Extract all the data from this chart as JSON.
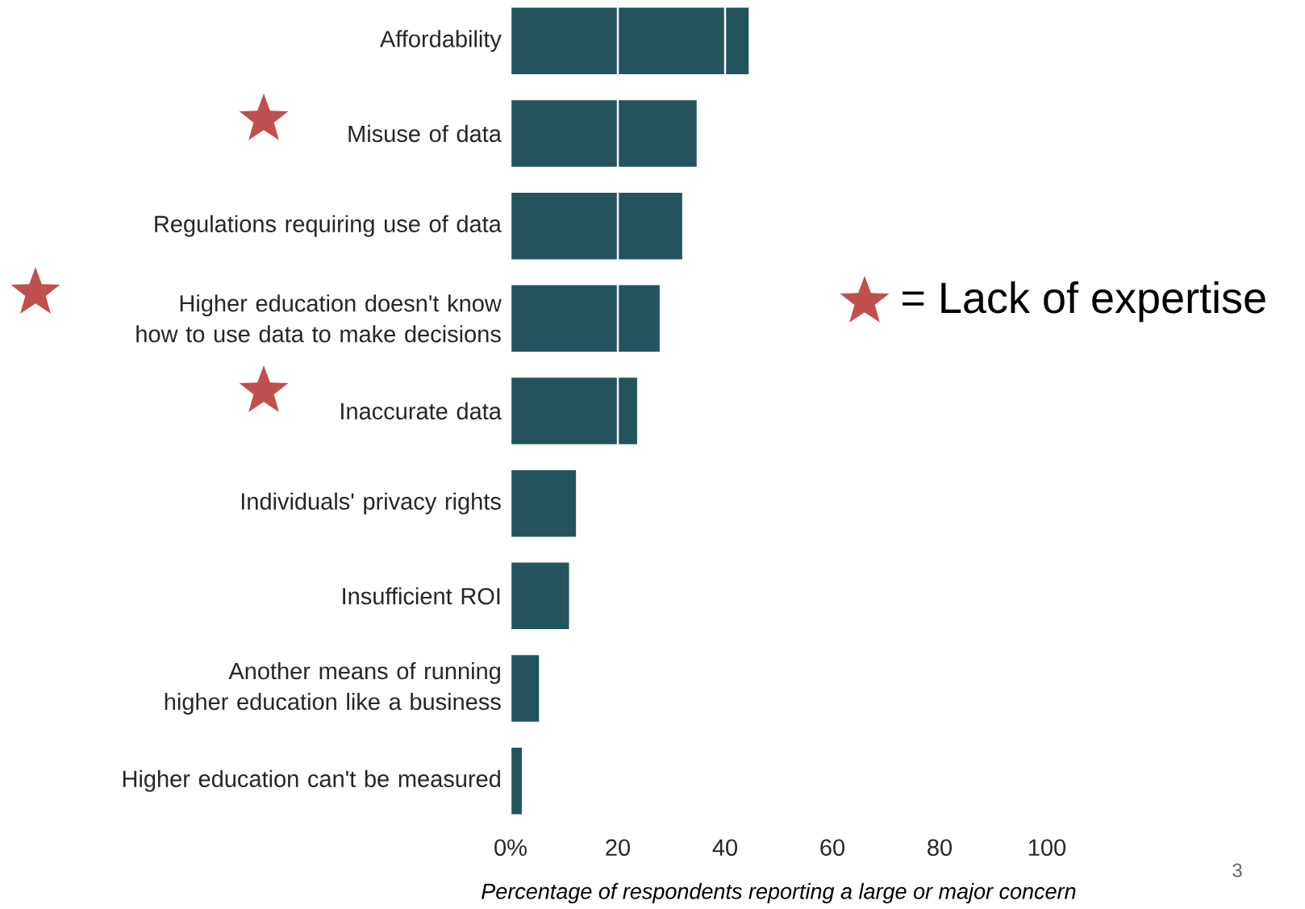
{
  "chart_data": {
    "type": "bar",
    "orientation": "horizontal",
    "categories": [
      "Affordability",
      "Misuse of data",
      "Regulations requiring use of data",
      "Higher education doesn't know how to use data to make decisions",
      "Inaccurate data",
      "Individuals' privacy rights",
      "Insufficient ROI",
      "Another means of running higher education like a business",
      "Higher education can't be measured"
    ],
    "values": [
      44.4,
      34.7,
      32.0,
      27.8,
      23.6,
      12.2,
      10.9,
      5.3,
      2.1
    ],
    "color": "#23545e",
    "xlim": [
      0,
      100
    ],
    "xticks": [
      {
        "value": 0,
        "label": "0%"
      },
      20,
      40,
      60,
      80,
      100
    ],
    "xlabel": "Percentage of respondents reporting a large or major concern",
    "grid": "x",
    "annotations": [
      "= Lack of expertise",
      "3"
    ]
  }
}
